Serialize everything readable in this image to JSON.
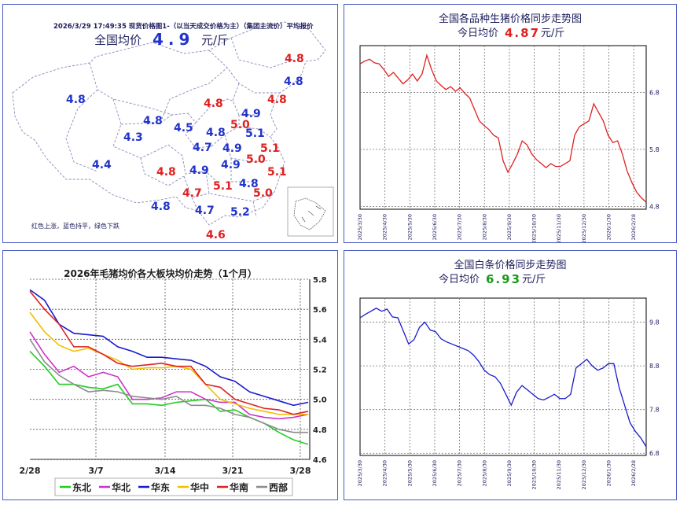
{
  "map_panel": {
    "header": "2026/3/29  17:49:35 现货价格图1-（以当天成交价格为主）（集团主流价）平均报价",
    "avg_label": "全国均价",
    "avg_value": "4.9",
    "unit": "元/斤",
    "legend_note": "红色上涨，蓝色持平，绿色下跌",
    "colors": {
      "up": "#e02020",
      "flat": "#2233cc"
    },
    "region_prices": [
      {
        "value": "4.8",
        "trend": "up"
      },
      {
        "value": "4.8",
        "trend": "flat"
      },
      {
        "value": "4.8",
        "trend": "flat"
      },
      {
        "value": "4.8",
        "trend": "up"
      },
      {
        "value": "4.8",
        "trend": "up"
      },
      {
        "value": "4.9",
        "trend": "flat"
      },
      {
        "value": "4.8",
        "trend": "flat"
      },
      {
        "value": "4.5",
        "trend": "flat"
      },
      {
        "value": "5.0",
        "trend": "up"
      },
      {
        "value": "4.3",
        "trend": "flat"
      },
      {
        "value": "4.8",
        "trend": "flat"
      },
      {
        "value": "5.1",
        "trend": "flat"
      },
      {
        "value": "4.7",
        "trend": "flat"
      },
      {
        "value": "4.9",
        "trend": "flat"
      },
      {
        "value": "5.1",
        "trend": "up"
      },
      {
        "value": "4.4",
        "trend": "flat"
      },
      {
        "value": "5.0",
        "trend": "up"
      },
      {
        "value": "4.8",
        "trend": "up"
      },
      {
        "value": "4.9",
        "trend": "flat"
      },
      {
        "value": "4.9",
        "trend": "flat"
      },
      {
        "value": "5.1",
        "trend": "up"
      },
      {
        "value": "4.7",
        "trend": "up"
      },
      {
        "value": "5.1",
        "trend": "up"
      },
      {
        "value": "4.8",
        "trend": "flat"
      },
      {
        "value": "5.0",
        "trend": "up"
      },
      {
        "value": "4.8",
        "trend": "flat"
      },
      {
        "value": "4.7",
        "trend": "flat"
      },
      {
        "value": "5.2",
        "trend": "flat"
      },
      {
        "value": "4.6",
        "trend": "up"
      }
    ]
  },
  "live_pig_panel": {
    "title": "全国各品种生猪价格同步走势图",
    "today_label": "今日均价",
    "today_value": "4.87",
    "unit": "元/斤",
    "value_color": "#e02020"
  },
  "white_strip_panel": {
    "title": "全国白条价格同步走势图",
    "today_label": "今日均价",
    "today_value": "6.93",
    "unit": "元/斤",
    "value_color": "#1a9a1a"
  },
  "regional_panel": {
    "title": "2026年毛猪均价各大板块均价走势（1个月）"
  },
  "chart_data": [
    {
      "type": "line",
      "title": "全国各品种生猪价格同步走势图",
      "x_ticks": [
        "2025/3/30",
        "2025/4/30",
        "2025/5/30",
        "2025/6/30",
        "2025/7/30",
        "2025/8/30",
        "2025/9/30",
        "2025/10/30",
        "2025/11/30",
        "2025/12/30",
        "2026/1/30",
        "2026/2/28"
      ],
      "yticks": [
        "4.8",
        "5.8",
        "6.8"
      ],
      "ylim": [
        4.75,
        7.62
      ],
      "line_color": "#e02020",
      "series": [
        {
          "values": [
            7.3,
            7.35,
            7.38,
            7.32,
            7.3,
            7.2,
            7.08,
            7.15,
            7.05,
            6.95,
            7.02,
            7.12,
            7.0,
            7.12,
            7.45,
            7.2,
            7.0,
            6.92,
            6.85,
            6.9,
            6.82,
            6.88,
            6.78,
            6.7,
            6.5,
            6.3,
            6.22,
            6.15,
            6.05,
            6.0,
            5.6,
            5.4,
            5.55,
            5.72,
            5.95,
            5.88,
            5.72,
            5.62,
            5.55,
            5.48,
            5.55,
            5.5,
            5.5,
            5.55,
            5.6,
            6.05,
            6.2,
            6.25,
            6.3,
            6.6,
            6.45,
            6.3,
            6.05,
            5.92,
            5.95,
            5.72,
            5.42,
            5.22,
            5.05,
            4.95,
            4.87
          ]
        }
      ]
    },
    {
      "type": "line",
      "title": "2026年毛猪均价各大板块均价走势（1个月）",
      "x_ticks": [
        "2/28",
        "3/7",
        "3/14",
        "3/21",
        "3/28"
      ],
      "yticks": [
        "4.6",
        "4.8",
        "5.0",
        "5.2",
        "5.4",
        "5.6",
        "5.8"
      ],
      "ylim": [
        4.6,
        5.8
      ],
      "series": [
        {
          "name": "东北",
          "color": "#22cc22",
          "values": [
            5.32,
            5.22,
            5.1,
            5.1,
            5.08,
            5.07,
            5.1,
            4.97,
            4.97,
            4.96,
            4.98,
            4.99,
            5.0,
            4.92,
            4.93,
            4.88,
            4.84,
            4.78,
            4.73,
            4.7
          ]
        },
        {
          "name": "华北",
          "color": "#cc33cc",
          "values": [
            5.45,
            5.3,
            5.18,
            5.22,
            5.15,
            5.18,
            5.15,
            5.0,
            5.0,
            5.01,
            5.05,
            5.05,
            5.0,
            4.98,
            4.98,
            4.9,
            4.88,
            4.87,
            4.88,
            4.9
          ]
        },
        {
          "name": "华东",
          "color": "#1a1ad0",
          "values": [
            5.73,
            5.66,
            5.5,
            5.44,
            5.43,
            5.42,
            5.35,
            5.32,
            5.28,
            5.28,
            5.27,
            5.26,
            5.22,
            5.15,
            5.12,
            5.05,
            5.02,
            4.99,
            4.96,
            4.98
          ]
        },
        {
          "name": "华中",
          "color": "#f0c000",
          "values": [
            5.58,
            5.45,
            5.36,
            5.32,
            5.34,
            5.3,
            5.26,
            5.2,
            5.21,
            5.21,
            5.22,
            5.2,
            5.1,
            5.0,
            4.97,
            4.94,
            4.92,
            4.9,
            4.9,
            4.9
          ]
        },
        {
          "name": "华南",
          "color": "#e02020",
          "values": [
            5.72,
            5.6,
            5.5,
            5.35,
            5.35,
            5.3,
            5.24,
            5.22,
            5.23,
            5.24,
            5.22,
            5.22,
            5.1,
            5.08,
            5.0,
            4.97,
            4.94,
            4.93,
            4.9,
            4.92
          ]
        },
        {
          "name": "西部",
          "color": "#8c8c8c",
          "values": [
            5.4,
            5.25,
            5.16,
            5.1,
            5.05,
            5.06,
            5.05,
            5.02,
            5.01,
            5.0,
            5.02,
            4.96,
            4.96,
            4.94,
            4.9,
            4.88,
            4.84,
            4.8,
            4.78,
            4.78
          ]
        }
      ]
    },
    {
      "type": "line",
      "title": "全国白条价格同步走势图",
      "x_ticks": [
        "2025/3/30",
        "2025/4/30",
        "2025/5/30",
        "2025/6/30",
        "2025/7/30",
        "2025/8/30",
        "2025/9/30",
        "2025/10/30",
        "2025/11/30",
        "2025/12/30",
        "2026/1/30",
        "2026/2/28"
      ],
      "yticks": [
        "6.8",
        "7.8",
        "8.8",
        "9.8"
      ],
      "ylim": [
        6.75,
        10.35
      ],
      "line_color": "#1a1ad0",
      "series": [
        {
          "values": [
            9.9,
            9.98,
            10.05,
            10.12,
            10.05,
            10.1,
            9.92,
            9.9,
            9.6,
            9.3,
            9.4,
            9.68,
            9.8,
            9.62,
            9.58,
            9.42,
            9.35,
            9.3,
            9.25,
            9.2,
            9.15,
            9.05,
            8.9,
            8.7,
            8.6,
            8.55,
            8.4,
            8.15,
            7.9,
            8.2,
            8.35,
            8.25,
            8.15,
            8.05,
            8.02,
            8.08,
            8.15,
            8.05,
            8.05,
            8.15,
            8.75,
            8.85,
            8.95,
            8.8,
            8.7,
            8.75,
            8.85,
            8.85,
            8.3,
            7.9,
            7.5,
            7.3,
            7.15,
            6.95
          ]
        }
      ]
    }
  ]
}
